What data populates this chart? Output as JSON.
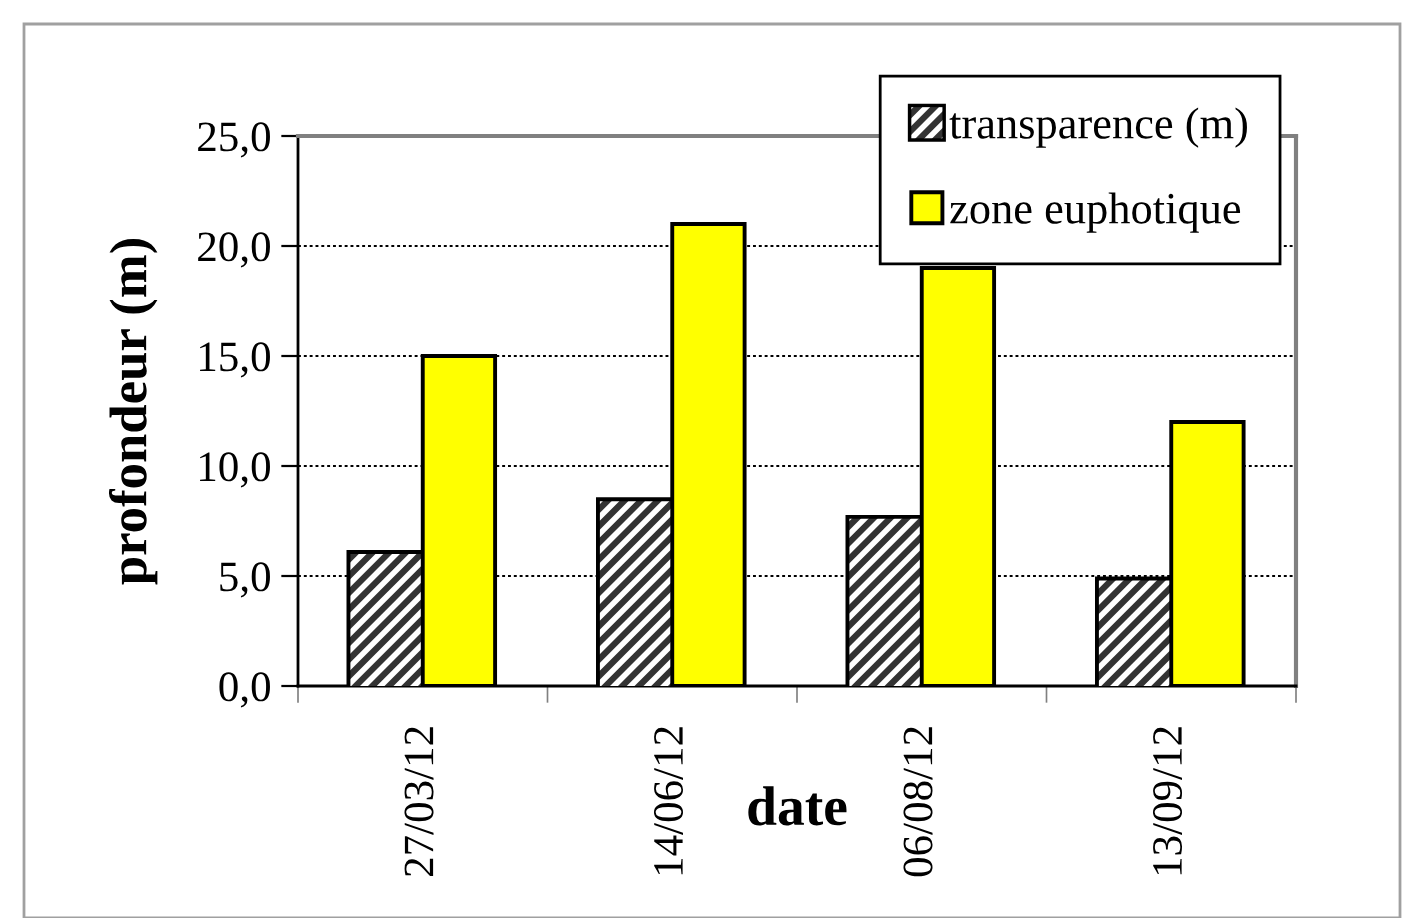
{
  "chart_data": {
    "type": "bar",
    "xlabel": "date",
    "ylabel": "profondeur (m)",
    "categories": [
      "27/03/12",
      "14/06/12",
      "06/08/12",
      "13/09/12"
    ],
    "series": [
      {
        "name": "transparence (m)",
        "color": "#333333",
        "values": [
          6.0,
          8.4,
          7.6,
          4.8
        ]
      },
      {
        "name": "zone euphotique",
        "color": "#ffff00",
        "values": [
          15.0,
          21.0,
          19.0,
          12.0
        ]
      }
    ],
    "ylim": [
      0,
      25
    ],
    "yticks": [
      {
        "value": 0,
        "label": "0,0"
      },
      {
        "value": 5,
        "label": "5,0"
      },
      {
        "value": 10,
        "label": "10,0"
      },
      {
        "value": 15,
        "label": "15,0"
      },
      {
        "value": 20,
        "label": "20,0"
      },
      {
        "value": 25,
        "label": "25,0"
      }
    ],
    "grid": "y",
    "legend": "top right"
  }
}
